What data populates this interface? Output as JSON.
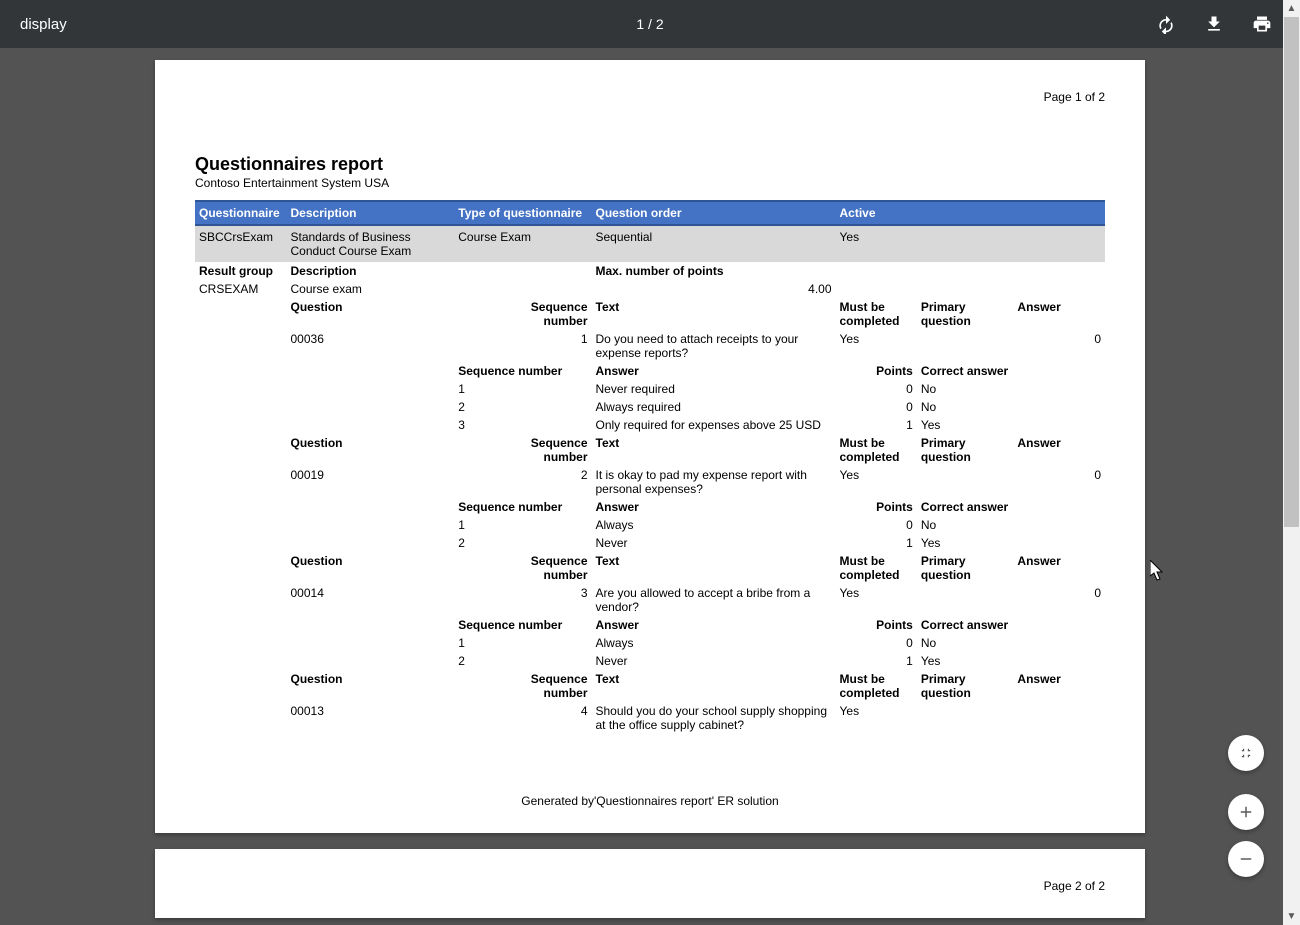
{
  "toolbar": {
    "title": "display",
    "page_indicator": "1 / 2"
  },
  "colors": {
    "toolbar_bg": "#323639",
    "viewer_bg": "#535353",
    "page_bg": "#ffffff",
    "header_bg": "#4472c4",
    "header_border": "#2f5597",
    "header_text": "#ffffff",
    "data_row_bg": "#d9d9d9",
    "text": "#000000",
    "scrollbar_track": "#f1f1f1",
    "scrollbar_thumb": "#c1c1c1",
    "fab_bg": "#ffffff",
    "fab_icon": "#5a5a5a"
  },
  "report": {
    "page1_label": "Page 1 of 2",
    "page2_label": "Page 2 of 2",
    "title": "Questionnaires report",
    "subtitle": "Contoso Entertainment System USA",
    "columns": {
      "questionnaire": "Questionnaire",
      "description": "Description",
      "type": "Type of questionnaire",
      "order": "Question order",
      "active": "Active"
    },
    "row": {
      "questionnaire": "SBCCrsExam",
      "description": "Standards of Business Conduct Course Exam",
      "type": "Course Exam",
      "order": "Sequential",
      "active": "Yes"
    },
    "sub_headers": {
      "result_group": "Result group",
      "description": "Description",
      "max_points": "Max. number of points",
      "question": "Question",
      "sequence_number": "Sequence number",
      "text": "Text",
      "must_be_completed": "Must be completed",
      "primary_question": "Primary question",
      "answer": "Answer",
      "points": "Points",
      "correct_answer": "Correct answer"
    },
    "result_group": {
      "id": "CRSEXAM",
      "description": "Course exam",
      "max_points": "4.00"
    },
    "questions": [
      {
        "id": "00036",
        "seq": "1",
        "text": "Do you need to attach receipts to your expense reports?",
        "must_be_completed": "Yes",
        "answer": "0",
        "answers": [
          {
            "seq": "1",
            "text": "Never required",
            "points": "0",
            "correct": "No"
          },
          {
            "seq": "2",
            "text": "Always required",
            "points": "0",
            "correct": "No"
          },
          {
            "seq": "3",
            "text": "Only required for expenses above 25 USD",
            "points": "1",
            "correct": "Yes"
          }
        ]
      },
      {
        "id": "00019",
        "seq": "2",
        "text": "It is okay to pad my expense report with personal expenses?",
        "must_be_completed": "Yes",
        "answer": "0",
        "answers": [
          {
            "seq": "1",
            "text": "Always",
            "points": "0",
            "correct": "No"
          },
          {
            "seq": "2",
            "text": "Never",
            "points": "1",
            "correct": "Yes"
          }
        ]
      },
      {
        "id": "00014",
        "seq": "3",
        "text": "Are you allowed to accept a bribe from a vendor?",
        "must_be_completed": "Yes",
        "answer": "0",
        "answers": [
          {
            "seq": "1",
            "text": "Always",
            "points": "0",
            "correct": "No"
          },
          {
            "seq": "2",
            "text": "Never",
            "points": "1",
            "correct": "Yes"
          }
        ]
      },
      {
        "id": "00013",
        "seq": "4",
        "text": "Should you do your school supply shopping at the office supply cabinet?",
        "must_be_completed": "Yes",
        "answer": "",
        "answers": []
      }
    ],
    "footer": "Generated by'Questionnaires report' ER solution"
  }
}
